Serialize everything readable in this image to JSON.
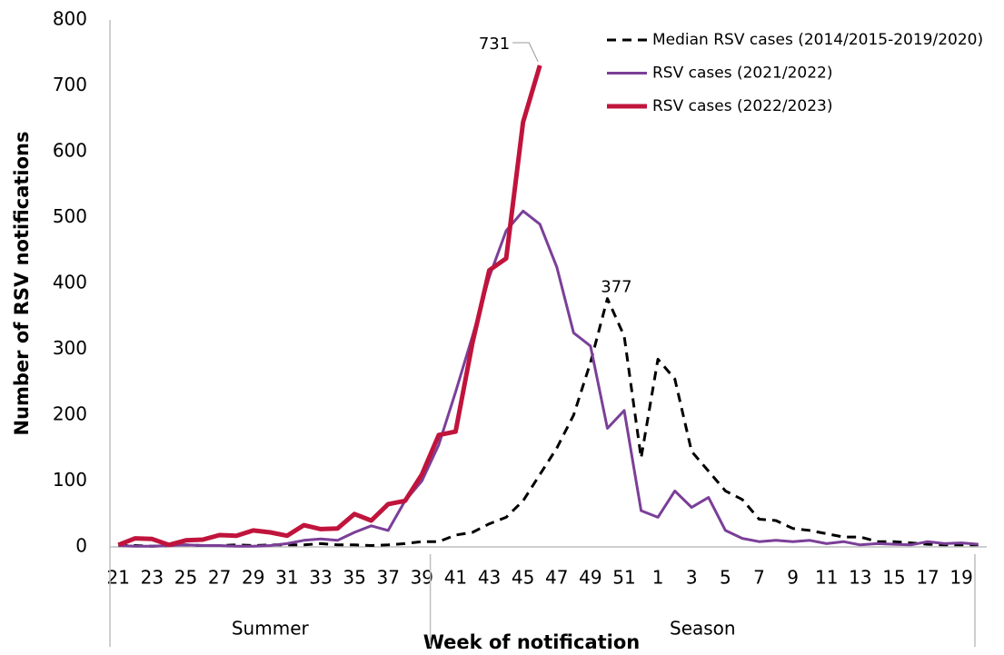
{
  "chart_data": {
    "type": "line",
    "y_label": "Number of RSV notifications",
    "x_label": "Week of notification",
    "x_groups": [
      "Summer",
      "Season"
    ],
    "categories": [
      "21",
      null,
      "23",
      null,
      "25",
      null,
      "27",
      null,
      "29",
      null,
      "31",
      null,
      "33",
      null,
      "35",
      null,
      "37",
      null,
      "39",
      null,
      "41",
      null,
      "43",
      null,
      "45",
      null,
      "47",
      null,
      "49",
      null,
      "51",
      null,
      "1",
      null,
      "3",
      null,
      "5",
      null,
      "7",
      null,
      "9",
      null,
      "11",
      null,
      "13",
      null,
      "15",
      null,
      "17",
      null,
      "19",
      null
    ],
    "ylim": [
      0,
      800
    ],
    "yticks": [
      0,
      100,
      200,
      300,
      400,
      500,
      600,
      700,
      800
    ],
    "grid": false,
    "legend": "top-right",
    "series": [
      {
        "name": "Median RSV cases (2014/2015-2019/2020)",
        "color": "#000000",
        "dashed": true,
        "values": [
          2,
          2,
          1,
          2,
          3,
          2,
          2,
          3,
          2,
          3,
          3,
          3,
          5,
          3,
          3,
          2,
          3,
          5,
          8,
          8,
          18,
          22,
          35,
          45,
          70,
          110,
          150,
          200,
          280,
          377,
          320,
          135,
          285,
          255,
          145,
          115,
          85,
          72,
          42,
          40,
          28,
          25,
          20,
          15,
          15,
          8,
          8,
          6,
          4,
          3,
          3,
          3
        ],
        "value_labels": [
          null,
          null,
          null,
          null,
          null,
          null,
          null,
          null,
          null,
          null,
          null,
          null,
          null,
          null,
          null,
          null,
          null,
          null,
          null,
          null,
          null,
          null,
          null,
          null,
          null,
          null,
          null,
          null,
          null,
          "377",
          null,
          null,
          null,
          null,
          null,
          null,
          null,
          null,
          null,
          null,
          null,
          null,
          null,
          null,
          null,
          null,
          null,
          null,
          null,
          null,
          null,
          null
        ]
      },
      {
        "name": "RSV cases (2021/2022)",
        "color": "#7b3f98",
        "dashed": false,
        "values": [
          2,
          1,
          1,
          2,
          3,
          2,
          2,
          1,
          1,
          2,
          5,
          10,
          12,
          10,
          22,
          32,
          25,
          70,
          100,
          155,
          235,
          320,
          410,
          480,
          510,
          490,
          425,
          325,
          305,
          180,
          207,
          55,
          45,
          85,
          60,
          75,
          25,
          13,
          8,
          10,
          8,
          10,
          5,
          8,
          3,
          5,
          4,
          3,
          8,
          5,
          6,
          4
        ]
      },
      {
        "name": "RSV cases (2022/2023)",
        "color": "#c0143c",
        "dashed": false,
        "values": [
          3,
          13,
          12,
          3,
          10,
          11,
          18,
          17,
          25,
          22,
          17,
          33,
          27,
          28,
          50,
          40,
          65,
          70,
          110,
          170,
          175,
          310,
          420,
          438,
          645,
          731,
          null,
          null,
          null,
          null,
          null,
          null,
          null,
          null,
          null,
          null,
          null,
          null,
          null,
          null,
          null,
          null,
          null,
          null,
          null,
          null,
          null,
          null,
          null,
          null,
          null,
          null
        ],
        "value_labels": [
          null,
          null,
          null,
          null,
          null,
          null,
          null,
          null,
          null,
          null,
          null,
          null,
          null,
          null,
          null,
          null,
          null,
          null,
          null,
          null,
          null,
          null,
          null,
          null,
          null,
          "731",
          null,
          null,
          null,
          null,
          null,
          null,
          null,
          null,
          null,
          null,
          null,
          null,
          null,
          null,
          null,
          null,
          null,
          null,
          null,
          null,
          null,
          null,
          null,
          null,
          null,
          null
        ]
      }
    ]
  }
}
